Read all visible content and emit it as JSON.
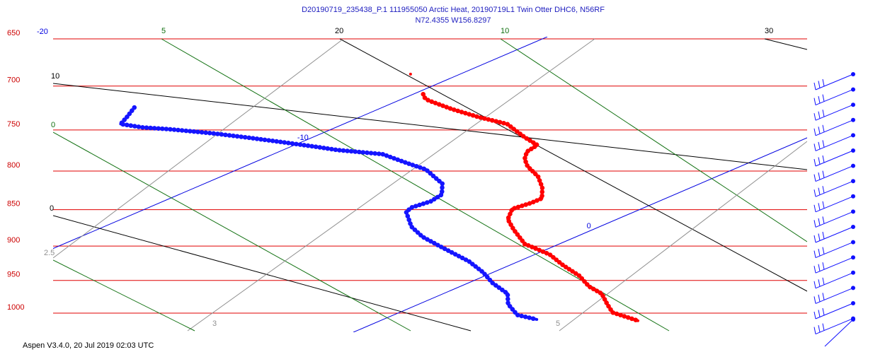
{
  "chart_data": {
    "type": "skewt",
    "title": "D20190719_235438_P.1 111955050 Arctic Heat, 20190719L1 Twin Otter DHC6, N56RF",
    "subtitle": "N72.4355 W156.8297",
    "footer": "Aspen V3.4.0, 20 Jul 2019  02:03 UTC",
    "ylim": [
      650,
      1030
    ],
    "log_y": true,
    "yticks": [
      650,
      700,
      750,
      800,
      850,
      900,
      950,
      1000
    ],
    "xticks": [
      -20,
      -10,
      0
    ],
    "isobar_color": "#e00000",
    "isotherm_color": "#0000e0",
    "dry_adiabat_labels": [
      10,
      0,
      20,
      30
    ],
    "mixing_ratio_labels": [
      5,
      10,
      0
    ],
    "moist_labels": [
      2.5,
      3,
      5
    ],
    "series": [
      {
        "color": "#ff0000",
        "pressure": [
          687,
          null,
          709,
          713,
          716,
          726,
          735,
          743,
          751,
          759,
          768,
          776,
          785,
          794,
          807,
          821,
          835,
          841,
          849,
          863,
          877,
          897,
          912,
          928,
          943,
          959,
          970,
          986,
          999,
          1012
        ],
        "values": [
          -11.0,
          null,
          -9.8,
          -9.6,
          -9.4,
          -8.5,
          -7.6,
          -6.7,
          -6.2,
          -5.7,
          -5.1,
          -5.0,
          -4.7,
          -4.3,
          -3.6,
          -3.0,
          -2.5,
          -2.5,
          -2.6,
          -2.2,
          -1.6,
          -0.7,
          0.3,
          1.1,
          1.9,
          2.6,
          3.2,
          3.8,
          4.3,
          5.2
        ]
      },
      {
        "color": "#1515ff",
        "pressure": [
          724,
          735,
          743,
          747,
          749,
          754,
          759,
          765,
          770,
          774,
          779,
          785,
          791,
          798,
          807,
          816,
          830,
          839,
          847,
          853,
          873,
          887,
          902,
          922,
          938,
          954,
          970,
          986,
          1003,
          1010
        ],
        "values": [
          -15.0,
          -14.7,
          -14.5,
          -13.9,
          -13.3,
          -12.2,
          -11.3,
          -10.3,
          -9.5,
          -8.9,
          -7.8,
          -7.3,
          -6.8,
          -6.2,
          -5.7,
          -5.2,
          -4.7,
          -4.6,
          -4.7,
          -4.6,
          -3.8,
          -3.1,
          -2.2,
          -1.0,
          -0.2,
          0.5,
          1.3,
          1.8,
          2.5,
          3.1
        ]
      }
    ]
  }
}
